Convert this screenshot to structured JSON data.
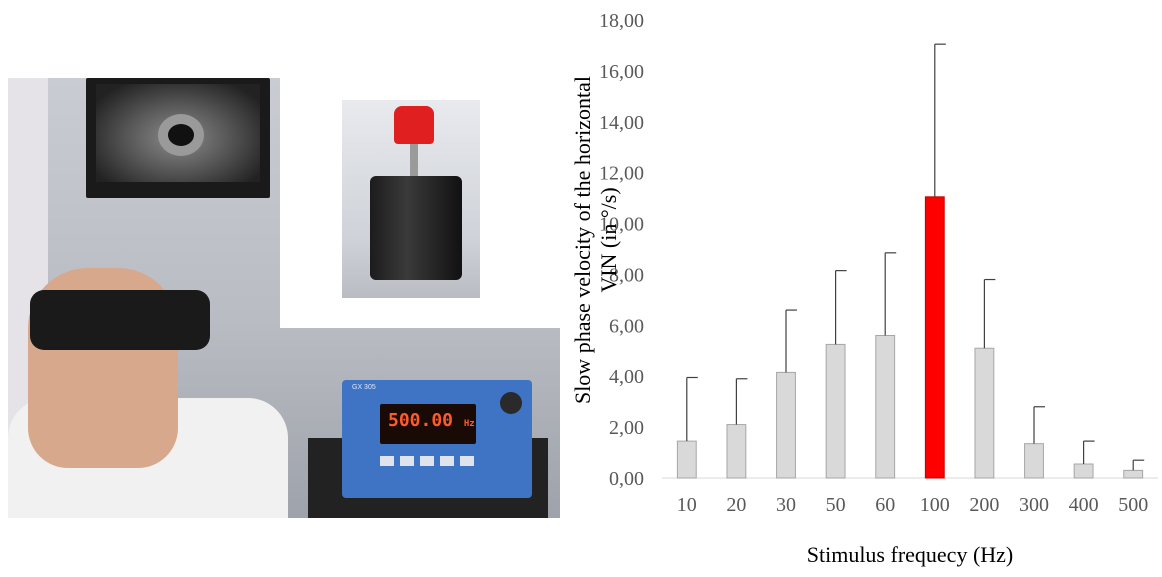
{
  "photo": {
    "generator_display": "500.00",
    "generator_unit": "Hz",
    "generator_brand": "GX 305"
  },
  "chart_data": {
    "type": "bar",
    "categories": [
      "10",
      "20",
      "30",
      "50",
      "60",
      "100",
      "200",
      "300",
      "400",
      "500"
    ],
    "values": [
      1.45,
      2.1,
      4.15,
      5.25,
      5.6,
      11.05,
      5.1,
      1.35,
      0.55,
      0.3
    ],
    "error_upper": [
      3.95,
      3.9,
      6.6,
      8.15,
      8.85,
      17.05,
      7.8,
      2.8,
      1.45,
      0.7
    ],
    "highlight_index": 5,
    "ylim": [
      0,
      18
    ],
    "yticks": [
      "0,00",
      "2,00",
      "4,00",
      "6,00",
      "8,00",
      "10,00",
      "12,00",
      "14,00",
      "16,00",
      "18,00"
    ],
    "ylabel_line1": "Slow phase velocity of the horizontal",
    "ylabel_line2": "VIN (in °/s)",
    "xlabel": "Stimulus  frequecy (Hz)",
    "colors": {
      "bar": "#d9d9d9",
      "bar_edge": "#a6a6a6",
      "highlight": "#ff0000",
      "error": "#404040"
    }
  }
}
